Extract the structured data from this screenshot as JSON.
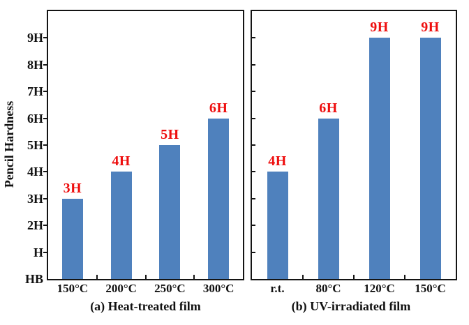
{
  "chart_data": {
    "type": "bar",
    "title": "",
    "ylabel": "Pencil Hardness",
    "xlabel": "",
    "value_scale": "pencil hardness grades mapped to ordinal numbers: HB=0, H=1, 2H=2, 3H=3, 4H=4, 5H=5, 6H=6, 7H=7, 8H=8, 9H=9",
    "ylim": [
      0,
      10
    ],
    "y_tick_labels": [
      "HB",
      "H",
      "2H",
      "3H",
      "4H",
      "5H",
      "6H",
      "7H",
      "8H",
      "9H"
    ],
    "grid": false,
    "legend_position": "none",
    "bar_color": "#4f81bd",
    "bar_label_color": "#ee0e0e",
    "axis_color": "#141414",
    "panels": [
      {
        "caption": "(a) Heat-treated film",
        "categories": [
          "150°C",
          "200°C",
          "250°C",
          "300°C"
        ],
        "values": [
          3,
          4,
          5,
          6
        ],
        "bar_labels": [
          "3H",
          "4H",
          "5H",
          "6H"
        ]
      },
      {
        "caption": "(b) UV-irradiated film",
        "categories": [
          "r.t.",
          "80°C",
          "120°C",
          "150°C"
        ],
        "values": [
          4,
          6,
          9,
          9
        ],
        "bar_labels": [
          "4H",
          "6H",
          "9H",
          "9H"
        ]
      }
    ]
  }
}
